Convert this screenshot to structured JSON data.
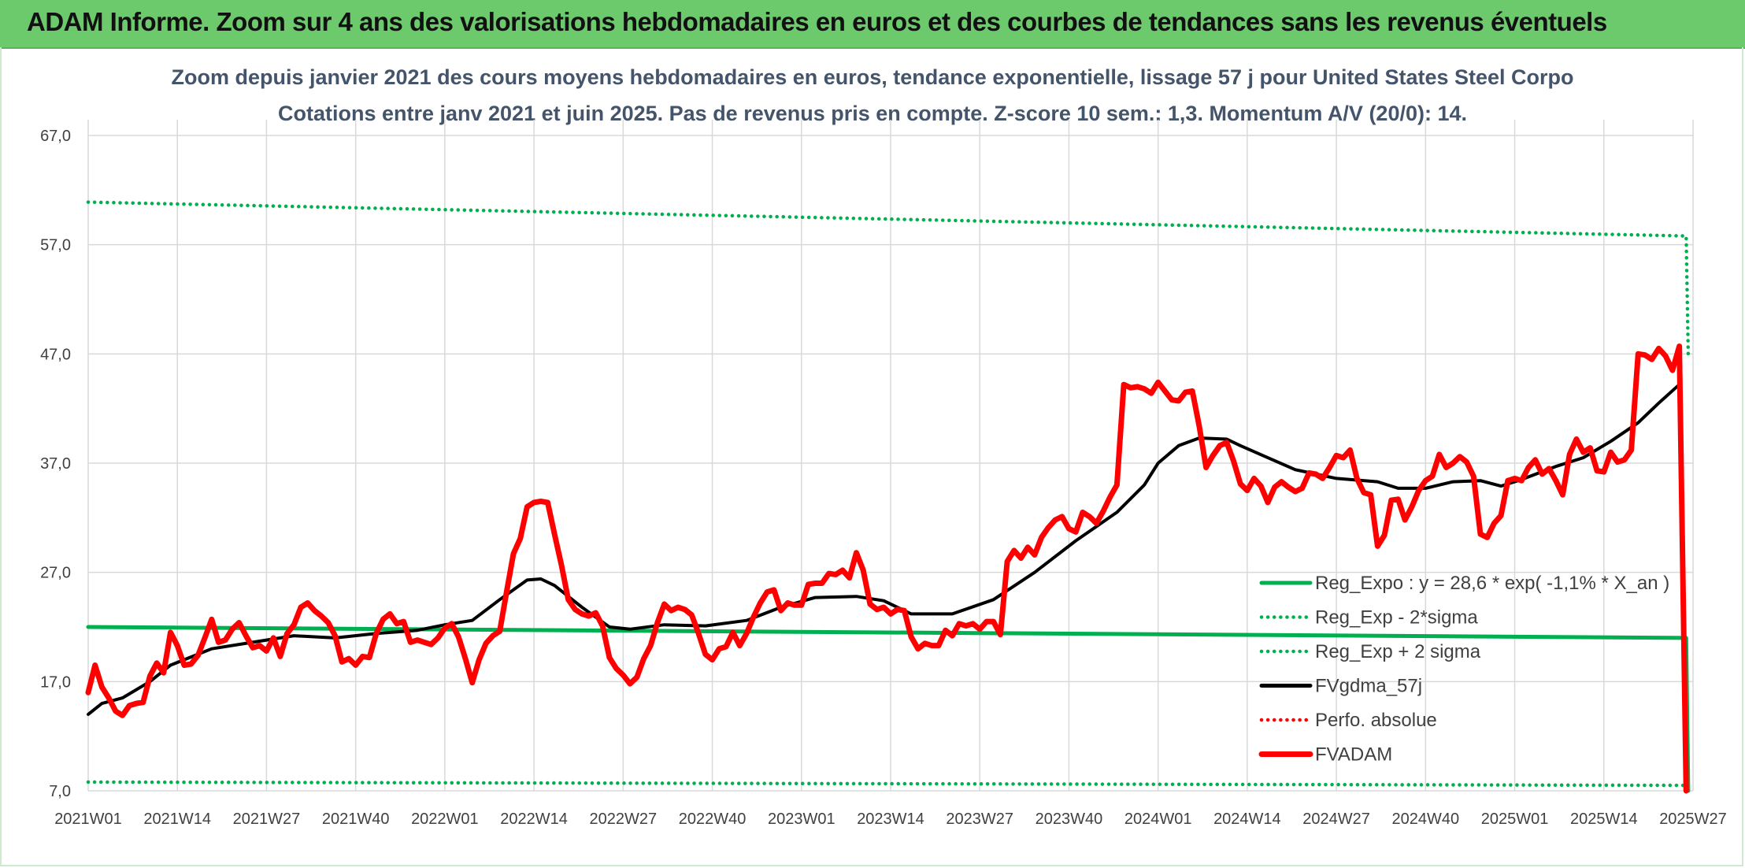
{
  "header": {
    "title": "ADAM Informe. Zoom sur 4 ans des valorisations hebdomadaires en euros et des courbes de tendances sans les revenus éventuels"
  },
  "colors": {
    "banner": "#6cc96c",
    "regression": "#00b050",
    "moving_average": "#000000",
    "price": "#ff0000",
    "grid": "#d9d9d9",
    "text": "#44546a"
  },
  "chart_data": {
    "type": "line",
    "title": "Zoom depuis janvier 2021 des cours moyens hebdomadaires en euros, tendance exponentielle, lissage 57 j pour United States Steel Corpo",
    "subtitle": "Cotations entre janv 2021 et juin 2025. Pas de revenus pris en compte. Z-score 10 sem.: 1,3. Momentum A/V (20/0): 14.",
    "xlabel": "",
    "ylabel": "",
    "ylim": [
      7,
      67
    ],
    "y_ticks": [
      "67,0",
      "57,0",
      "47,0",
      "37,0",
      "27,0",
      "17,0",
      "7,0"
    ],
    "x_tick_labels": [
      "2021W01",
      "2021W14",
      "2021W27",
      "2021W40",
      "2022W01",
      "2022W14",
      "2022W27",
      "2022W40",
      "2023W01",
      "2023W14",
      "2023W27",
      "2023W40",
      "2024W01",
      "2024W14",
      "2024W27",
      "2024W40",
      "2025W01",
      "2025W14",
      "2025W27"
    ],
    "x_tick_index": [
      0,
      13,
      26,
      39,
      52,
      65,
      78,
      91,
      104,
      117,
      130,
      143,
      156,
      169,
      182,
      195,
      208,
      221,
      234
    ],
    "grid": true,
    "legend_position": "right",
    "series": [
      {
        "name": "Reg_Expo : y = 28,6 * exp( -1,1% *  X_an )",
        "style": "solid",
        "color": "#00b050",
        "anchors": [
          [
            0,
            22.0
          ],
          [
            233,
            21.0
          ],
          [
            233.3,
            7.0
          ]
        ]
      },
      {
        "name": "Reg_Exp - 2*sigma",
        "style": "dotted",
        "color": "#00b050",
        "anchors": [
          [
            0,
            7.8
          ],
          [
            233,
            7.5
          ]
        ]
      },
      {
        "name": "Reg_Exp + 2 sigma",
        "style": "dotted",
        "color": "#00b050",
        "anchors": [
          [
            0,
            60.9
          ],
          [
            233,
            57.8
          ],
          [
            233.3,
            47.0
          ]
        ]
      },
      {
        "name": "FVgdma_57j",
        "style": "solid",
        "color": "#000000",
        "anchors": [
          [
            0,
            14.0
          ],
          [
            2,
            15.0
          ],
          [
            5,
            15.5
          ],
          [
            9,
            17.0
          ],
          [
            12,
            18.5
          ],
          [
            18,
            20.0
          ],
          [
            24,
            20.6
          ],
          [
            30,
            21.2
          ],
          [
            36,
            21.0
          ],
          [
            42,
            21.4
          ],
          [
            48,
            21.7
          ],
          [
            52,
            22.2
          ],
          [
            56,
            22.6
          ],
          [
            60,
            24.5
          ],
          [
            64,
            26.3
          ],
          [
            66,
            26.4
          ],
          [
            68,
            25.8
          ],
          [
            72,
            23.8
          ],
          [
            76,
            22.0
          ],
          [
            79,
            21.8
          ],
          [
            84,
            22.2
          ],
          [
            90,
            22.1
          ],
          [
            96,
            22.6
          ],
          [
            101,
            23.8
          ],
          [
            106,
            24.7
          ],
          [
            112,
            24.8
          ],
          [
            116,
            24.4
          ],
          [
            120,
            23.2
          ],
          [
            126,
            23.2
          ],
          [
            132,
            24.5
          ],
          [
            138,
            27.0
          ],
          [
            144,
            29.9
          ],
          [
            150,
            32.5
          ],
          [
            154,
            35.0
          ],
          [
            156,
            37.0
          ],
          [
            159,
            38.6
          ],
          [
            162,
            39.3
          ],
          [
            166,
            39.2
          ],
          [
            168,
            38.6
          ],
          [
            172,
            37.5
          ],
          [
            176,
            36.4
          ],
          [
            182,
            35.6
          ],
          [
            188,
            35.3
          ],
          [
            191,
            34.7
          ],
          [
            195,
            34.7
          ],
          [
            199,
            35.3
          ],
          [
            203,
            35.4
          ],
          [
            206,
            34.9
          ],
          [
            209,
            35.5
          ],
          [
            214,
            36.7
          ],
          [
            218,
            37.5
          ],
          [
            222,
            39.0
          ],
          [
            226,
            40.7
          ],
          [
            229,
            42.5
          ],
          [
            232,
            44.2
          ]
        ]
      },
      {
        "name": "Perfo. absolue",
        "style": "dotted",
        "color": "#ff0000",
        "anchors": []
      },
      {
        "name": "FVADAM",
        "style": "solid",
        "color": "#ff0000",
        "anchors": [
          [
            0,
            16.0
          ],
          [
            1,
            18.5
          ],
          [
            2,
            16.5
          ],
          [
            3,
            15.5
          ],
          [
            4,
            14.3
          ],
          [
            5,
            13.9
          ],
          [
            6,
            14.8
          ],
          [
            7,
            15.0
          ],
          [
            8,
            15.1
          ],
          [
            9,
            17.5
          ],
          [
            10,
            18.7
          ],
          [
            11,
            17.8
          ],
          [
            12,
            21.5
          ],
          [
            13,
            20.3
          ],
          [
            14,
            18.5
          ],
          [
            15,
            18.6
          ],
          [
            16,
            19.4
          ],
          [
            17,
            21.0
          ],
          [
            18,
            22.7
          ],
          [
            19,
            20.6
          ],
          [
            20,
            20.8
          ],
          [
            21,
            21.8
          ],
          [
            22,
            22.4
          ],
          [
            23,
            21.2
          ],
          [
            24,
            20.1
          ],
          [
            25,
            20.3
          ],
          [
            26,
            19.8
          ],
          [
            27,
            21.0
          ],
          [
            28,
            19.3
          ],
          [
            29,
            21.4
          ],
          [
            30,
            22.2
          ],
          [
            31,
            23.8
          ],
          [
            32,
            24.2
          ],
          [
            33,
            23.5
          ],
          [
            34,
            23.0
          ],
          [
            35,
            22.4
          ],
          [
            36,
            21.2
          ],
          [
            37,
            18.8
          ],
          [
            38,
            19.1
          ],
          [
            39,
            18.5
          ],
          [
            40,
            19.3
          ],
          [
            41,
            19.2
          ],
          [
            42,
            21.4
          ],
          [
            43,
            22.7
          ],
          [
            44,
            23.2
          ],
          [
            45,
            22.3
          ],
          [
            46,
            22.5
          ],
          [
            47,
            20.6
          ],
          [
            48,
            20.8
          ],
          [
            49,
            20.6
          ],
          [
            50,
            20.4
          ],
          [
            51,
            21.0
          ],
          [
            52,
            21.9
          ],
          [
            53,
            22.3
          ],
          [
            54,
            21.1
          ],
          [
            55,
            19.1
          ],
          [
            56,
            16.9
          ],
          [
            57,
            19.0
          ],
          [
            58,
            20.5
          ],
          [
            59,
            21.2
          ],
          [
            60,
            21.6
          ],
          [
            61,
            25.2
          ],
          [
            62,
            28.7
          ],
          [
            63,
            30.1
          ],
          [
            64,
            33.0
          ],
          [
            65,
            33.4
          ],
          [
            66,
            33.5
          ],
          [
            67,
            33.4
          ],
          [
            68,
            30.5
          ],
          [
            69,
            27.7
          ],
          [
            70,
            24.5
          ],
          [
            71,
            23.6
          ],
          [
            72,
            23.2
          ],
          [
            73,
            23.0
          ],
          [
            74,
            23.3
          ],
          [
            75,
            22.1
          ],
          [
            76,
            19.2
          ],
          [
            77,
            18.2
          ],
          [
            78,
            17.6
          ],
          [
            79,
            16.8
          ],
          [
            80,
            17.4
          ],
          [
            81,
            19.1
          ],
          [
            82,
            20.3
          ],
          [
            83,
            22.4
          ],
          [
            84,
            24.1
          ],
          [
            85,
            23.5
          ],
          [
            86,
            23.8
          ],
          [
            87,
            23.6
          ],
          [
            88,
            23.1
          ],
          [
            89,
            21.4
          ],
          [
            90,
            19.5
          ],
          [
            91,
            19.0
          ],
          [
            92,
            20.0
          ],
          [
            93,
            20.2
          ],
          [
            94,
            21.5
          ],
          [
            95,
            20.3
          ],
          [
            96,
            21.4
          ],
          [
            97,
            22.9
          ],
          [
            98,
            24.2
          ],
          [
            99,
            25.2
          ],
          [
            100,
            25.4
          ],
          [
            101,
            23.5
          ],
          [
            102,
            24.2
          ],
          [
            103,
            24.0
          ],
          [
            104,
            24.0
          ],
          [
            105,
            25.9
          ],
          [
            106,
            26.0
          ],
          [
            107,
            26.0
          ],
          [
            108,
            26.9
          ],
          [
            109,
            26.8
          ],
          [
            110,
            27.2
          ],
          [
            111,
            26.5
          ],
          [
            112,
            28.8
          ],
          [
            113,
            27.2
          ],
          [
            114,
            24.1
          ],
          [
            115,
            23.6
          ],
          [
            116,
            23.8
          ],
          [
            117,
            23.2
          ],
          [
            118,
            23.6
          ],
          [
            119,
            23.5
          ],
          [
            120,
            21.1
          ],
          [
            121,
            20.0
          ],
          [
            122,
            20.5
          ],
          [
            123,
            20.3
          ],
          [
            124,
            20.3
          ],
          [
            125,
            21.7
          ],
          [
            126,
            21.2
          ],
          [
            127,
            22.3
          ],
          [
            128,
            22.1
          ],
          [
            129,
            22.3
          ],
          [
            130,
            21.8
          ],
          [
            131,
            22.5
          ],
          [
            132,
            22.5
          ],
          [
            133,
            21.3
          ],
          [
            134,
            28.0
          ],
          [
            135,
            29.0
          ],
          [
            136,
            28.3
          ],
          [
            137,
            29.3
          ],
          [
            138,
            28.6
          ],
          [
            139,
            30.2
          ],
          [
            140,
            31.1
          ],
          [
            141,
            31.8
          ],
          [
            142,
            32.1
          ],
          [
            143,
            31.0
          ],
          [
            144,
            30.7
          ],
          [
            145,
            32.5
          ],
          [
            146,
            32.1
          ],
          [
            147,
            31.5
          ],
          [
            148,
            32.6
          ],
          [
            149,
            33.9
          ],
          [
            150,
            35.0
          ],
          [
            151,
            44.2
          ],
          [
            152,
            43.9
          ],
          [
            153,
            44.0
          ],
          [
            154,
            43.8
          ],
          [
            155,
            43.4
          ],
          [
            156,
            44.4
          ],
          [
            157,
            43.6
          ],
          [
            158,
            42.8
          ],
          [
            159,
            42.7
          ],
          [
            160,
            43.5
          ],
          [
            161,
            43.6
          ],
          [
            162,
            40.4
          ],
          [
            163,
            36.6
          ],
          [
            164,
            37.7
          ],
          [
            165,
            38.6
          ],
          [
            166,
            38.9
          ],
          [
            167,
            37.2
          ],
          [
            168,
            35.1
          ],
          [
            169,
            34.5
          ],
          [
            170,
            35.6
          ],
          [
            171,
            34.9
          ],
          [
            172,
            33.4
          ],
          [
            173,
            34.8
          ],
          [
            174,
            35.3
          ],
          [
            175,
            34.8
          ],
          [
            176,
            34.4
          ],
          [
            177,
            34.7
          ],
          [
            178,
            36.1
          ],
          [
            179,
            36.0
          ],
          [
            180,
            35.6
          ],
          [
            181,
            36.6
          ],
          [
            182,
            37.7
          ],
          [
            183,
            37.5
          ],
          [
            184,
            38.2
          ],
          [
            185,
            35.6
          ],
          [
            186,
            34.3
          ],
          [
            187,
            34.1
          ],
          [
            188,
            29.4
          ],
          [
            189,
            30.4
          ],
          [
            190,
            33.6
          ],
          [
            191,
            33.7
          ],
          [
            192,
            31.8
          ],
          [
            193,
            33.0
          ],
          [
            194,
            34.5
          ],
          [
            195,
            35.4
          ],
          [
            196,
            35.8
          ],
          [
            197,
            37.8
          ],
          [
            198,
            36.6
          ],
          [
            199,
            37.0
          ],
          [
            200,
            37.6
          ],
          [
            201,
            37.1
          ],
          [
            202,
            35.8
          ],
          [
            203,
            30.5
          ],
          [
            204,
            30.2
          ],
          [
            205,
            31.5
          ],
          [
            206,
            32.2
          ],
          [
            207,
            35.4
          ],
          [
            208,
            35.6
          ],
          [
            209,
            35.4
          ],
          [
            210,
            36.6
          ],
          [
            211,
            37.3
          ],
          [
            212,
            36.0
          ],
          [
            213,
            36.5
          ],
          [
            214,
            35.4
          ],
          [
            215,
            34.1
          ],
          [
            216,
            37.8
          ],
          [
            217,
            39.2
          ],
          [
            218,
            38.0
          ],
          [
            219,
            38.4
          ],
          [
            220,
            36.3
          ],
          [
            221,
            36.2
          ],
          [
            222,
            38.0
          ],
          [
            223,
            37.1
          ],
          [
            224,
            37.3
          ],
          [
            225,
            38.2
          ],
          [
            226,
            47.0
          ],
          [
            227,
            46.9
          ],
          [
            228,
            46.5
          ],
          [
            229,
            47.5
          ],
          [
            230,
            46.8
          ],
          [
            231,
            45.5
          ],
          [
            232,
            47.7
          ],
          [
            233,
            7.0
          ]
        ]
      }
    ]
  }
}
